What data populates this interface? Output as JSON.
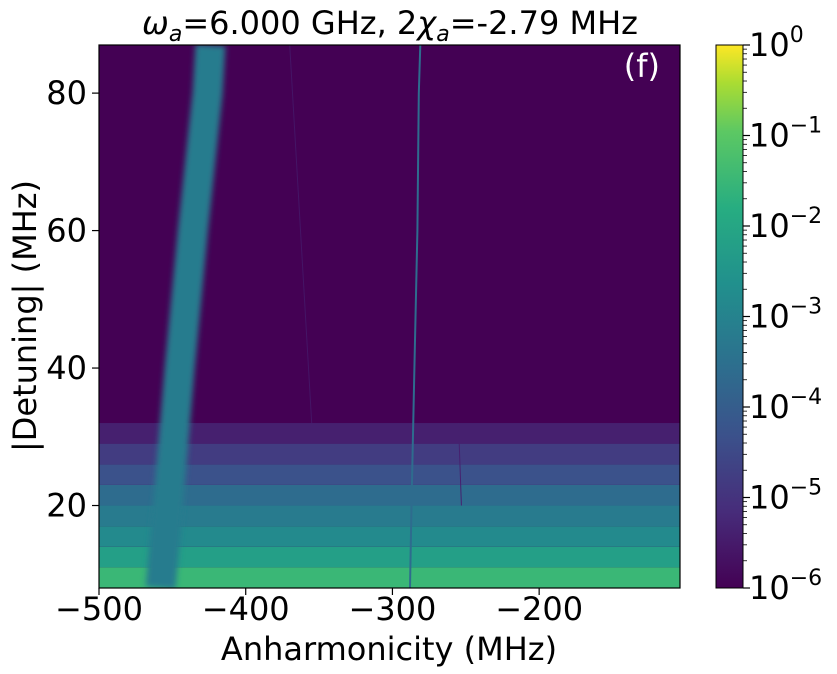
{
  "chart_data": {
    "type": "heatmap",
    "title": "ω_a=6.000 GHz, 2χ_a=-2.79 MHz",
    "title_parts": {
      "omega": "ω",
      "omega_sub": "a",
      "eq1": "=6.000 GHz, 2",
      "chi": "χ",
      "chi_sub": "a",
      "eq2": "=-2.79 MHz"
    },
    "panel_label": "(f)",
    "xlabel": "Anharmonicity (MHz)",
    "ylabel": "|Detuning| (MHz)",
    "xlim": [
      -500,
      -104
    ],
    "ylim": [
      8,
      87
    ],
    "x_ticks": [
      {
        "value": -500,
        "label": "−500"
      },
      {
        "value": -400,
        "label": "−400"
      },
      {
        "value": -300,
        "label": "−300"
      },
      {
        "value": -200,
        "label": "−200"
      }
    ],
    "y_ticks": [
      {
        "value": 20,
        "label": "20"
      },
      {
        "value": 40,
        "label": "40"
      },
      {
        "value": 60,
        "label": "60"
      },
      {
        "value": 80,
        "label": "80"
      }
    ],
    "colorbar": {
      "scale": "log",
      "colormap": "viridis",
      "range": [
        1e-06,
        1
      ],
      "ticks": [
        {
          "exp": 0,
          "base": "10",
          "sup": "0"
        },
        {
          "exp": -1,
          "base": "10",
          "sup": "−1"
        },
        {
          "exp": -2,
          "base": "10",
          "sup": "−2"
        },
        {
          "exp": -3,
          "base": "10",
          "sup": "−3"
        },
        {
          "exp": -4,
          "base": "10",
          "sup": "−4"
        },
        {
          "exp": -5,
          "base": "10",
          "sup": "−5"
        },
        {
          "exp": -6,
          "base": "10",
          "sup": "−6"
        }
      ]
    },
    "background_exp": -6,
    "horizontal_bands": [
      {
        "y0": 8,
        "y1": 11,
        "exp": -1.5
      },
      {
        "y0": 11,
        "y1": 14,
        "exp": -2.2
      },
      {
        "y0": 14,
        "y1": 17,
        "exp": -2.8
      },
      {
        "y0": 17,
        "y1": 20,
        "exp": -3.2
      },
      {
        "y0": 20,
        "y1": 23,
        "exp": -3.6
      },
      {
        "y0": 23,
        "y1": 26,
        "exp": -4.3
      },
      {
        "y0": 26,
        "y1": 29,
        "exp": -4.8
      },
      {
        "y0": 29,
        "y1": 32,
        "exp": -5.4
      }
    ],
    "resonance_ridges": [
      {
        "name": "main",
        "points": [
          [
            -458,
            8
          ],
          [
            -453,
            20
          ],
          [
            -445,
            40
          ],
          [
            -436,
            60
          ],
          [
            -426,
            80
          ],
          [
            -424,
            87
          ]
        ],
        "width": 30,
        "exp": -3.2
      },
      {
        "name": "narrow",
        "points": [
          [
            -288,
            8
          ],
          [
            -287,
            20
          ],
          [
            -285,
            40
          ],
          [
            -283,
            60
          ],
          [
            -282,
            80
          ],
          [
            -281,
            87
          ]
        ],
        "width": 2,
        "exp": -3.6
      },
      {
        "name": "faint",
        "points": [
          [
            -370,
            87
          ],
          [
            -355,
            32
          ]
        ],
        "width": 1,
        "exp": -5.6
      },
      {
        "name": "faint2",
        "points": [
          [
            -255,
            32
          ],
          [
            -253,
            20
          ]
        ],
        "width": 1,
        "exp": -5.4
      }
    ]
  }
}
